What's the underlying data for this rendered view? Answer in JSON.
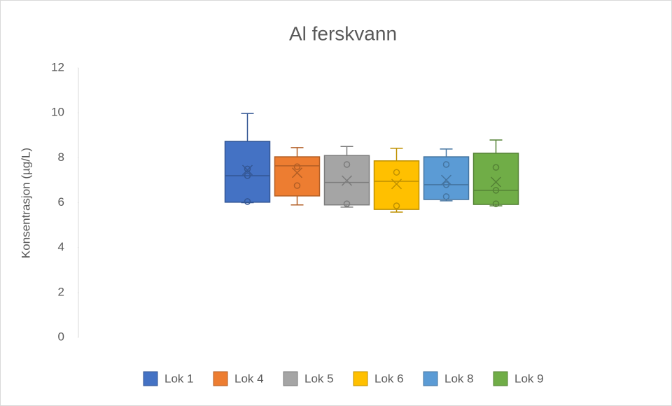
{
  "chart_data": {
    "type": "box",
    "title": "Al ferskvann",
    "y_label": "Konsentrasjon (µg/L)",
    "ylim": [
      0,
      12
    ],
    "yticks": [
      0,
      2,
      4,
      6,
      8,
      10,
      12
    ],
    "series": [
      {
        "name": "Lok 1",
        "color": "#4472c4",
        "min": 6.0,
        "q1": 6.02,
        "median": 7.2,
        "q3": 8.73,
        "max": 9.97,
        "mean": 7.45,
        "points": [
          7.5,
          7.2,
          6.05
        ]
      },
      {
        "name": "Lok 4",
        "color": "#ed7d31",
        "min": 5.9,
        "q1": 6.3,
        "median": 7.64,
        "q3": 8.04,
        "max": 8.45,
        "mean": 7.33,
        "points": [
          7.6,
          6.76
        ]
      },
      {
        "name": "Lok 5",
        "color": "#a5a5a5",
        "min": 5.8,
        "q1": 5.9,
        "median": 6.9,
        "q3": 8.1,
        "max": 8.5,
        "mean": 6.98,
        "points": [
          7.7,
          5.95
        ]
      },
      {
        "name": "Lok 6",
        "color": "#ffc000",
        "min": 5.58,
        "q1": 5.7,
        "median": 6.95,
        "q3": 7.86,
        "max": 8.42,
        "mean": 6.83,
        "points": [
          7.35,
          5.86
        ]
      },
      {
        "name": "Lok 8",
        "color": "#5b9bd5",
        "min": 6.08,
        "q1": 6.14,
        "median": 6.8,
        "q3": 8.04,
        "max": 8.39,
        "mean": 7.01,
        "points": [
          7.7,
          6.8,
          6.27
        ]
      },
      {
        "name": "Lok 9",
        "color": "#70ad47",
        "min": 5.86,
        "q1": 5.92,
        "median": 6.55,
        "q3": 8.2,
        "max": 8.79,
        "mean": 6.92,
        "points": [
          7.57,
          6.55,
          5.95
        ]
      }
    ]
  }
}
